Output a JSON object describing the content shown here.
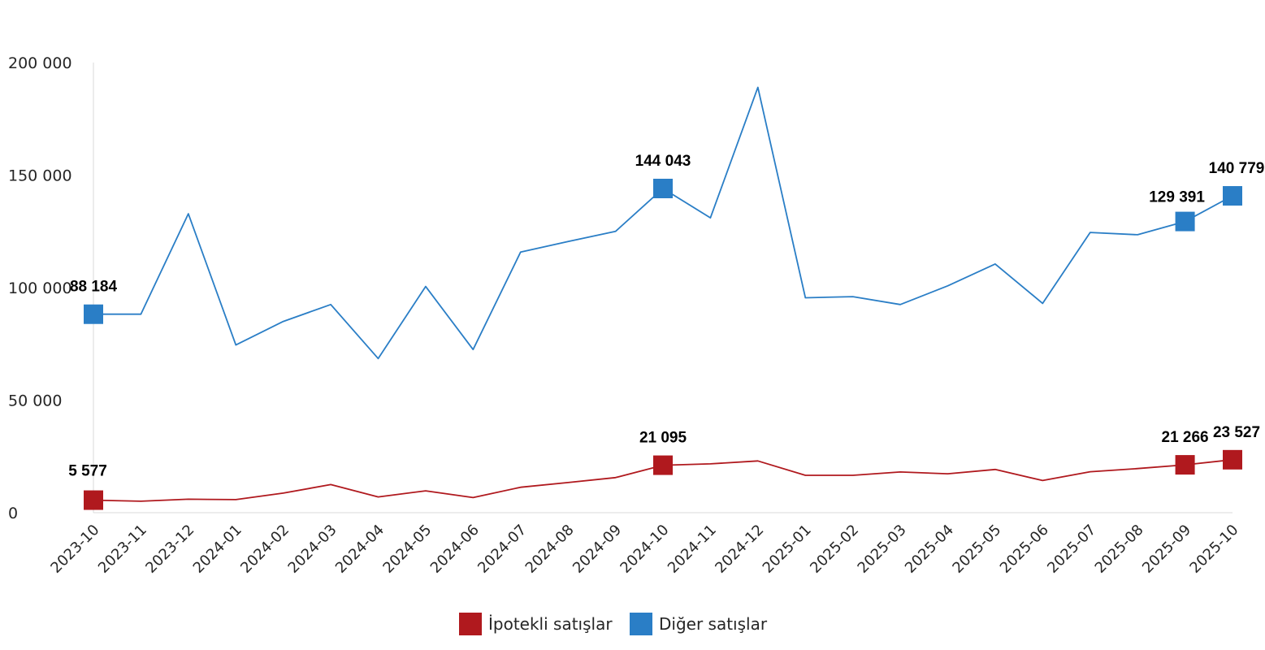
{
  "chart_data": {
    "type": "line",
    "title": "",
    "xlabel": "",
    "ylabel": "",
    "ylim": [
      0,
      200000
    ],
    "yticks": [
      {
        "value": 0,
        "label": "0"
      },
      {
        "value": 50000,
        "label": "50 000"
      },
      {
        "value": 100000,
        "label": "100 000"
      },
      {
        "value": 150000,
        "label": "150 000"
      },
      {
        "value": 200000,
        "label": "200 000"
      }
    ],
    "grid": false,
    "legend_position": "bottom",
    "categories": [
      "2023-10",
      "2023-11",
      "2023-12",
      "2024-01",
      "2024-02",
      "2024-03",
      "2024-04",
      "2024-05",
      "2024-06",
      "2024-07",
      "2024-08",
      "2024-09",
      "2024-10",
      "2024-11",
      "2024-12",
      "2025-01",
      "2025-02",
      "2025-03",
      "2025-04",
      "2025-05",
      "2025-06",
      "2025-07",
      "2025-08",
      "2025-09",
      "2025-10"
    ],
    "series": [
      {
        "name": "İpotekli satışlar",
        "color": "#b0191e",
        "values": [
          5577,
          5100,
          6000,
          5800,
          8700,
          12500,
          7000,
          9700,
          6700,
          11300,
          13400,
          15600,
          21095,
          21700,
          23000,
          16600,
          16600,
          18100,
          17300,
          19200,
          14300,
          18200,
          19600,
          21266,
          23527
        ],
        "labels": [
          {
            "index": 0,
            "text": "5 577"
          },
          {
            "index": 12,
            "text": "21 095"
          },
          {
            "index": 23,
            "text": "21 266"
          },
          {
            "index": 24,
            "text": "23 527"
          }
        ]
      },
      {
        "name": "Diğer satışlar",
        "color": "#2a7ec6",
        "values": [
          88184,
          88200,
          132800,
          74500,
          85000,
          92500,
          68500,
          100500,
          72500,
          115800,
          120500,
          125000,
          144043,
          131000,
          189000,
          95500,
          96000,
          92500,
          100800,
          110500,
          93000,
          124500,
          123500,
          129391,
          140779
        ],
        "labels": [
          {
            "index": 0,
            "text": "88 184"
          },
          {
            "index": 12,
            "text": "144 043"
          },
          {
            "index": 23,
            "text": "129 391"
          },
          {
            "index": 24,
            "text": "140 779"
          }
        ]
      }
    ]
  }
}
